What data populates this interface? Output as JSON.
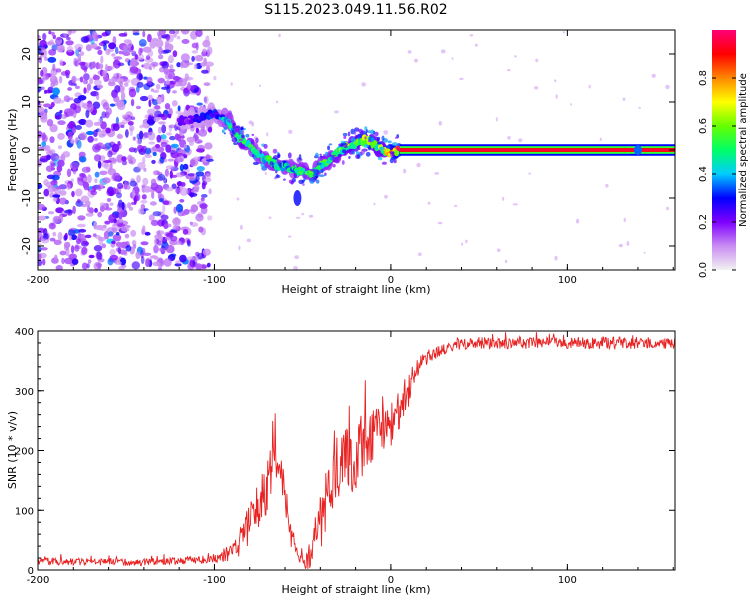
{
  "figure_title": "S115.2023.049.11.56.R02",
  "chart_data": [
    {
      "type": "heatmap",
      "title": "S115.2023.049.11.56.R02",
      "xlabel": "Height of straight line (km)",
      "ylabel": "Frequency (Hz)",
      "xlim": [
        -200,
        161
      ],
      "ylim": [
        -25,
        25
      ],
      "xticks": [
        -200,
        -100,
        0,
        100
      ],
      "yticks": [
        20,
        10,
        0,
        -10,
        -20
      ],
      "colorbar": {
        "label": "Normalized spectral amplitude",
        "range": [
          0.0,
          1.0
        ],
        "ticks": [
          0.0,
          0.2,
          0.4,
          0.6,
          0.8
        ],
        "colors": [
          "#f2f2f2",
          "#c98cf2",
          "#7f00ff",
          "#0000ff",
          "#00ccff",
          "#00ff66",
          "#66ff00",
          "#ffff00",
          "#ff8800",
          "#ff0000",
          "#ff0077"
        ]
      },
      "noise_region": {
        "x_from": -200,
        "x_to": -102,
        "level": 0.15
      },
      "ridge": {
        "description": "tracked Doppler line",
        "x": [
          -120,
          -110,
          -100,
          -92,
          -88,
          -84,
          -80,
          -75,
          -70,
          -65,
          -60,
          -55,
          -50,
          -45,
          -40,
          -35,
          -30,
          -25,
          -20,
          -15,
          -10,
          -5,
          0,
          5,
          20,
          60,
          100,
          140,
          161
        ],
        "y": [
          6,
          6.5,
          7.5,
          6,
          3,
          2,
          1,
          -1,
          -2,
          -3,
          -3.5,
          -4,
          -4.5,
          -4.8,
          -3.5,
          -2,
          -0.5,
          0.5,
          1.5,
          2,
          1.5,
          0,
          -0.5,
          0,
          0,
          0,
          0,
          0,
          0
        ],
        "amplitude": [
          0.2,
          0.25,
          0.3,
          0.45,
          0.5,
          0.55,
          0.5,
          0.45,
          0.5,
          0.5,
          0.45,
          0.45,
          0.5,
          0.55,
          0.5,
          0.5,
          0.55,
          0.6,
          0.65,
          0.65,
          0.6,
          0.6,
          0.7,
          0.95,
          1,
          1,
          1,
          1,
          1
        ]
      }
    },
    {
      "type": "line",
      "xlabel": "Height of straight line (km)",
      "ylabel": "SNR (10 * v/v)",
      "xlim": [
        -200,
        161
      ],
      "ylim": [
        0,
        400
      ],
      "xticks": [
        -200,
        -100,
        0,
        100
      ],
      "yticks": [
        400,
        300,
        200,
        100,
        0
      ],
      "series": [
        {
          "name": "SNR",
          "color": "#e82222",
          "x": [
            -200,
            -180,
            -160,
            -140,
            -120,
            -100,
            -90,
            -85,
            -80,
            -75,
            -70,
            -66,
            -62,
            -58,
            -54,
            -50,
            -46,
            -42,
            -38,
            -34,
            -30,
            -26,
            -22,
            -18,
            -14,
            -10,
            -6,
            -2,
            2,
            6,
            10,
            14,
            18,
            22,
            26,
            30,
            35,
            40,
            50,
            60,
            80,
            100,
            120,
            140,
            161
          ],
          "mean": [
            15,
            14,
            13,
            13,
            15,
            20,
            30,
            50,
            80,
            110,
            140,
            180,
            150,
            80,
            30,
            15,
            20,
            60,
            100,
            140,
            180,
            200,
            170,
            200,
            220,
            230,
            240,
            230,
            250,
            280,
            300,
            330,
            350,
            360,
            365,
            370,
            375,
            378,
            380,
            380,
            380,
            380,
            380,
            380,
            380
          ],
          "noise": [
            6,
            6,
            6,
            6,
            6,
            8,
            15,
            25,
            35,
            40,
            45,
            45,
            40,
            30,
            15,
            10,
            25,
            45,
            55,
            60,
            60,
            60,
            60,
            55,
            50,
            50,
            45,
            45,
            40,
            35,
            30,
            20,
            15,
            12,
            12,
            10,
            10,
            10,
            10,
            10,
            10,
            10,
            10,
            10,
            10
          ]
        }
      ]
    }
  ]
}
